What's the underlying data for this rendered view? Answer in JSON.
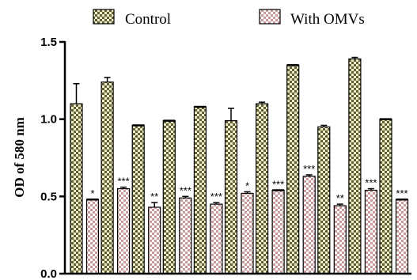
{
  "chart_data": {
    "type": "bar",
    "title": "",
    "xlabel": "",
    "ylabel": "OD of 580 nm",
    "ylim": [
      0,
      1.5
    ],
    "yticks": [
      0.0,
      0.5,
      1.0,
      1.5
    ],
    "ytick_labels": [
      "0.0",
      "0.5",
      "1.0",
      "1.5"
    ],
    "legend_position": "top",
    "series": [
      {
        "name": "Control",
        "color": "#8b8b5a",
        "pattern": "checker",
        "values": [
          1.1,
          1.24,
          0.96,
          0.99,
          1.08,
          0.99,
          1.1,
          1.35,
          0.95,
          1.39,
          1.0
        ],
        "errors": [
          0.13,
          0.03,
          0.0,
          0.0,
          0.0,
          0.08,
          0.01,
          0.0,
          0.01,
          0.01,
          0.0
        ]
      },
      {
        "name": "With OMVs",
        "color": "#d9b3b3",
        "pattern": "checker",
        "values": [
          0.48,
          0.55,
          0.43,
          0.49,
          0.45,
          0.52,
          0.54,
          0.63,
          0.44,
          0.54,
          0.48
        ],
        "errors": [
          0.0,
          0.01,
          0.03,
          0.01,
          0.01,
          0.01,
          0.0,
          0.01,
          0.01,
          0.01,
          0.0
        ],
        "significance": [
          "*",
          "***",
          "**",
          "***",
          "***",
          "*",
          "***",
          "***",
          "**",
          "***",
          "***"
        ]
      }
    ]
  }
}
